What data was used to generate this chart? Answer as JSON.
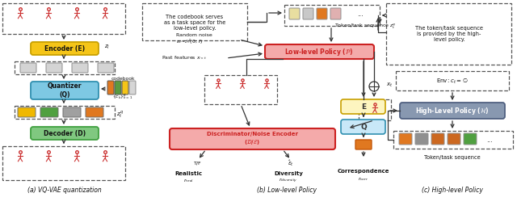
{
  "bg_color": "#ffffff",
  "panel_a_label": "(a) VQ-VAE quantization",
  "panel_b_label": "(b) Low-level Policy",
  "panel_c_label": "(c) High-level Policy",
  "encoder_color": "#f5c518",
  "encoder_border": "#c8a000",
  "encoder_text": "Encoder (E)",
  "quantizer_color": "#7ec8e3",
  "quantizer_border": "#3090b0",
  "quantizer_text": "Quantizer\n(Q)",
  "decoder_color": "#80c880",
  "decoder_border": "#40a040",
  "decoder_text": "Decoder (D)",
  "codebook_colors": [
    "#e07820",
    "#5a9a40",
    "#f5c518",
    "#bbbbbb"
  ],
  "low_policy_fill": "#f4aaaa",
  "low_policy_border": "#cc2222",
  "low_policy_text": "Low-level Policy (Ρ)",
  "disc_fill": "#f4aaaa",
  "disc_border": "#cc2222",
  "disc_text": "Discriminator/Noise Encoder\n(Ρ/Ε)",
  "e_box_fill": "#fdf5c0",
  "e_box_border": "#c8a000",
  "e_box_text": "E",
  "q_box_fill": "#c8e8f8",
  "q_box_border": "#3090b0",
  "q_box_text": "Q",
  "high_policy_fill": "#8898b0",
  "high_policy_border": "#506080",
  "high_policy_text": "High-Level Policy (ℋ)",
  "token_colors_b": [
    "#e8dea0",
    "#c8c8c8",
    "#e07820",
    "#e0b0b0",
    "#a0c888"
  ],
  "token_colors_c": [
    "#e07820",
    "#909090",
    "#cc6820",
    "#cc6820",
    "#50a040"
  ],
  "arr": "#333333",
  "dash": "#555555"
}
